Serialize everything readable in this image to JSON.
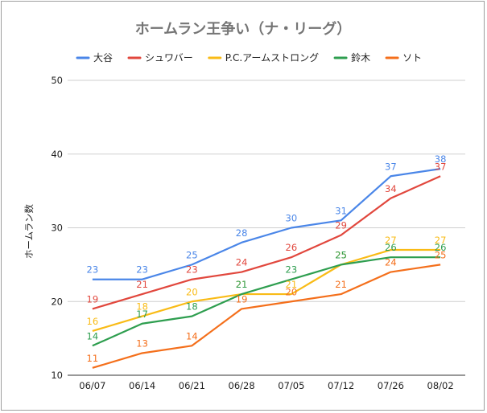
{
  "chart_data": {
    "type": "line",
    "title": "ホームラン王争い（ナ・リーグ）",
    "xlabel": "",
    "ylabel": "ホームラン数",
    "ylim": [
      10,
      50
    ],
    "yticks": [
      10,
      20,
      30,
      40,
      50
    ],
    "grid": true,
    "legend_position": "top",
    "categories": [
      "06/07",
      "06/14",
      "06/21",
      "06/28",
      "07/05",
      "07/12",
      "07/26",
      "08/02"
    ],
    "series": [
      {
        "name": "大谷",
        "color": "#4a86e8",
        "values": [
          23,
          23,
          25,
          28,
          30,
          31,
          37,
          38
        ]
      },
      {
        "name": "シュワバー",
        "color": "#e1473d",
        "values": [
          19,
          21,
          23,
          24,
          26,
          29,
          34,
          37
        ]
      },
      {
        "name": "P.C.アームストロング",
        "color": "#f9bb16",
        "values": [
          16,
          18,
          20,
          21,
          21,
          25,
          27,
          27
        ]
      },
      {
        "name": "鈴木",
        "color": "#2e9e4f",
        "values": [
          14,
          17,
          18,
          21,
          23,
          25,
          26,
          26
        ]
      },
      {
        "name": "ソト",
        "color": "#f46f1b",
        "values": [
          11,
          13,
          14,
          19,
          20,
          21,
          24,
          25
        ]
      }
    ]
  }
}
